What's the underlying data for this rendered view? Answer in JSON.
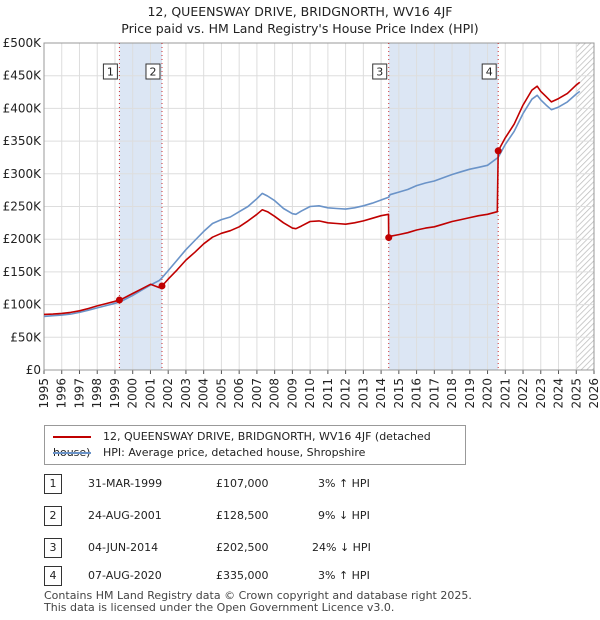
{
  "title_line1": "12, QUEENSWAY DRIVE, BRIDGNORTH, WV16 4JF",
  "title_line2": "Price paid vs. HM Land Registry's House Price Index (HPI)",
  "colors": {
    "price": "#c00000",
    "hpi": "#6a93c8",
    "band": "#dce6f4",
    "grid": "#dddddd"
  },
  "legend": {
    "price_label": "12, QUEENSWAY DRIVE, BRIDGNORTH, WV16 4JF (detached house)",
    "hpi_label": "HPI: Average price, detached house, Shropshire"
  },
  "chart_data": {
    "type": "line",
    "x_range": [
      1995,
      2026
    ],
    "y_range": [
      0,
      500000
    ],
    "y_ticks": [
      {
        "value": 0,
        "label": "£0"
      },
      {
        "value": 50000,
        "label": "£50K"
      },
      {
        "value": 100000,
        "label": "£100K"
      },
      {
        "value": 150000,
        "label": "£150K"
      },
      {
        "value": 200000,
        "label": "£200K"
      },
      {
        "value": 250000,
        "label": "£250K"
      },
      {
        "value": 300000,
        "label": "£300K"
      },
      {
        "value": 350000,
        "label": "£350K"
      },
      {
        "value": 400000,
        "label": "£400K"
      },
      {
        "value": 450000,
        "label": "£450K"
      },
      {
        "value": 500000,
        "label": "£500K"
      }
    ],
    "x_ticks": [
      1995,
      1996,
      1997,
      1998,
      1999,
      2000,
      2001,
      2002,
      2003,
      2004,
      2005,
      2006,
      2007,
      2008,
      2009,
      2010,
      2011,
      2012,
      2013,
      2014,
      2015,
      2016,
      2017,
      2018,
      2019,
      2020,
      2021,
      2022,
      2023,
      2024,
      2025,
      2026
    ],
    "shaded_bands": [
      [
        1999.25,
        2001.65
      ],
      [
        2014.43,
        2020.6
      ]
    ],
    "forecast_start": 2025.0,
    "series": [
      {
        "name": "HPI: Average price, detached house, Shropshire",
        "x": [
          1995.0,
          1995.5,
          1996.0,
          1996.5,
          1997.0,
          1997.5,
          1998.0,
          1998.5,
          1999.0,
          1999.25,
          1999.5,
          2000.0,
          2000.5,
          2001.0,
          2001.5,
          2001.65,
          2002.0,
          2002.5,
          2003.0,
          2003.5,
          2004.0,
          2004.5,
          2005.0,
          2005.5,
          2006.0,
          2006.5,
          2007.0,
          2007.3,
          2007.6,
          2008.0,
          2008.5,
          2009.0,
          2009.2,
          2009.5,
          2010.0,
          2010.5,
          2011.0,
          2011.5,
          2012.0,
          2012.5,
          2013.0,
          2013.5,
          2014.0,
          2014.43,
          2014.5,
          2015.0,
          2015.5,
          2016.0,
          2016.5,
          2017.0,
          2017.5,
          2018.0,
          2018.5,
          2019.0,
          2019.5,
          2020.0,
          2020.6,
          2021.0,
          2021.5,
          2022.0,
          2022.5,
          2022.8,
          2023.0,
          2023.3,
          2023.6,
          2024.0,
          2024.5,
          2025.0,
          2025.2
        ],
        "values": [
          82000,
          83000,
          84000,
          85500,
          88000,
          91500,
          95000,
          98500,
          102000,
          104000,
          107000,
          114000,
          122000,
          130000,
          137000,
          141000,
          152000,
          168000,
          184000,
          198000,
          212000,
          224000,
          230000,
          234000,
          242000,
          250000,
          262000,
          270000,
          266000,
          259000,
          247000,
          239000,
          238000,
          243000,
          250000,
          251000,
          248000,
          247000,
          246000,
          248000,
          251000,
          255000,
          260000,
          264000,
          268000,
          272000,
          276000,
          282000,
          286000,
          289000,
          294000,
          299000,
          303000,
          307000,
          310000,
          313000,
          325000,
          345000,
          365000,
          392000,
          414000,
          420000,
          413000,
          405000,
          398000,
          402000,
          410000,
          422000,
          426000
        ]
      },
      {
        "name": "12, QUEENSWAY DRIVE, BRIDGNORTH, WV16 4JF (detached house)",
        "x": [
          1995.0,
          1995.5,
          1996.0,
          1996.5,
          1997.0,
          1997.5,
          1998.0,
          1998.5,
          1999.0,
          1999.25,
          1999.5,
          2000.0,
          2000.5,
          2001.0,
          2001.5,
          2001.65,
          2002.0,
          2002.5,
          2003.0,
          2003.5,
          2004.0,
          2004.5,
          2005.0,
          2005.5,
          2006.0,
          2006.5,
          2007.0,
          2007.3,
          2007.6,
          2008.0,
          2008.5,
          2009.0,
          2009.2,
          2009.5,
          2010.0,
          2010.5,
          2011.0,
          2011.5,
          2012.0,
          2012.5,
          2013.0,
          2013.5,
          2014.0,
          2014.42,
          2014.43,
          2014.5,
          2015.0,
          2015.5,
          2016.0,
          2016.5,
          2017.0,
          2017.5,
          2018.0,
          2018.5,
          2019.0,
          2019.5,
          2020.0,
          2020.55,
          2020.6,
          2021.0,
          2021.5,
          2022.0,
          2022.5,
          2022.8,
          2023.0,
          2023.3,
          2023.6,
          2024.0,
          2024.5,
          2025.0,
          2025.2
        ],
        "values": [
          85000,
          85500,
          86500,
          88000,
          90500,
          94000,
          98000,
          101500,
          105000,
          107000,
          110000,
          117000,
          124000,
          131000,
          126000,
          128500,
          139000,
          153000,
          168000,
          180000,
          193000,
          203000,
          209000,
          213000,
          219000,
          228000,
          238000,
          245000,
          242000,
          235000,
          225000,
          217000,
          216000,
          220000,
          227000,
          228000,
          225000,
          224000,
          223000,
          225000,
          228000,
          232000,
          236000,
          238000,
          202500,
          204500,
          207000,
          210000,
          214000,
          217000,
          219000,
          223000,
          227000,
          230000,
          233000,
          236000,
          238000,
          242000,
          335000,
          355000,
          376000,
          405000,
          428000,
          434000,
          426000,
          418000,
          410000,
          415000,
          423000,
          436000,
          440000
        ]
      }
    ],
    "sales": [
      {
        "n": "1",
        "x": 1999.25,
        "value": 107000
      },
      {
        "n": "2",
        "x": 2001.65,
        "value": 128500
      },
      {
        "n": "3",
        "x": 2014.43,
        "value": 202500
      },
      {
        "n": "4",
        "x": 2020.6,
        "value": 335000
      }
    ]
  },
  "table": [
    {
      "n": "1",
      "date": "31-MAR-1999",
      "price": "£107,000",
      "hpi": "3% ↑ HPI"
    },
    {
      "n": "2",
      "date": "24-AUG-2001",
      "price": "£128,500",
      "hpi": "9% ↓ HPI"
    },
    {
      "n": "3",
      "date": "04-JUN-2014",
      "price": "£202,500",
      "hpi": "24% ↓ HPI"
    },
    {
      "n": "4",
      "date": "07-AUG-2020",
      "price": "£335,000",
      "hpi": "3% ↑ HPI"
    }
  ],
  "footer_line1": "Contains HM Land Registry data © Crown copyright and database right 2025.",
  "footer_line2": "This data is licensed under the Open Government Licence v3.0."
}
